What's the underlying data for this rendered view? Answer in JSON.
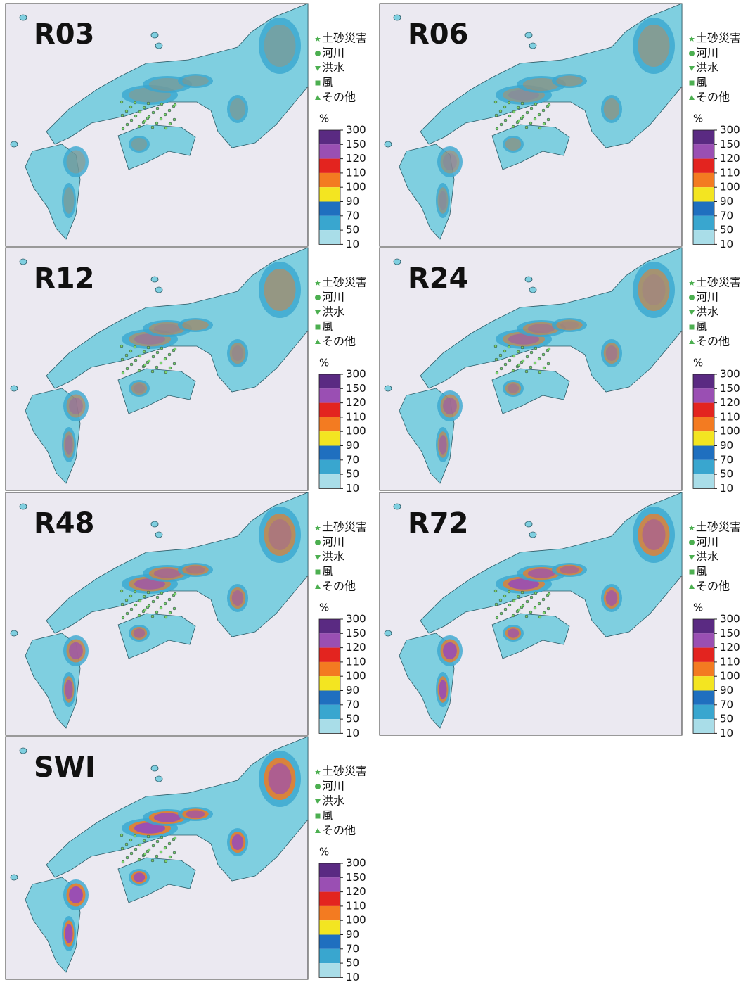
{
  "panels": [
    {
      "label": "R03"
    },
    {
      "label": "R06"
    },
    {
      "label": "R12"
    },
    {
      "label": "R24"
    },
    {
      "label": "R48"
    },
    {
      "label": "R72"
    },
    {
      "label": "SWI"
    }
  ],
  "legend": {
    "items": [
      "土砂災害",
      "河川",
      "洪水",
      "風",
      "その他"
    ],
    "unit": "%",
    "scale": [
      "300",
      "150",
      "120",
      "110",
      "100",
      "90",
      "70",
      "50",
      "10"
    ],
    "colors": [
      "#5a2a82",
      "#9a4fb3",
      "#e3241f",
      "#f37b21",
      "#f3e521",
      "#1f6fbf",
      "#39a6cf",
      "#a9dde8"
    ]
  }
}
